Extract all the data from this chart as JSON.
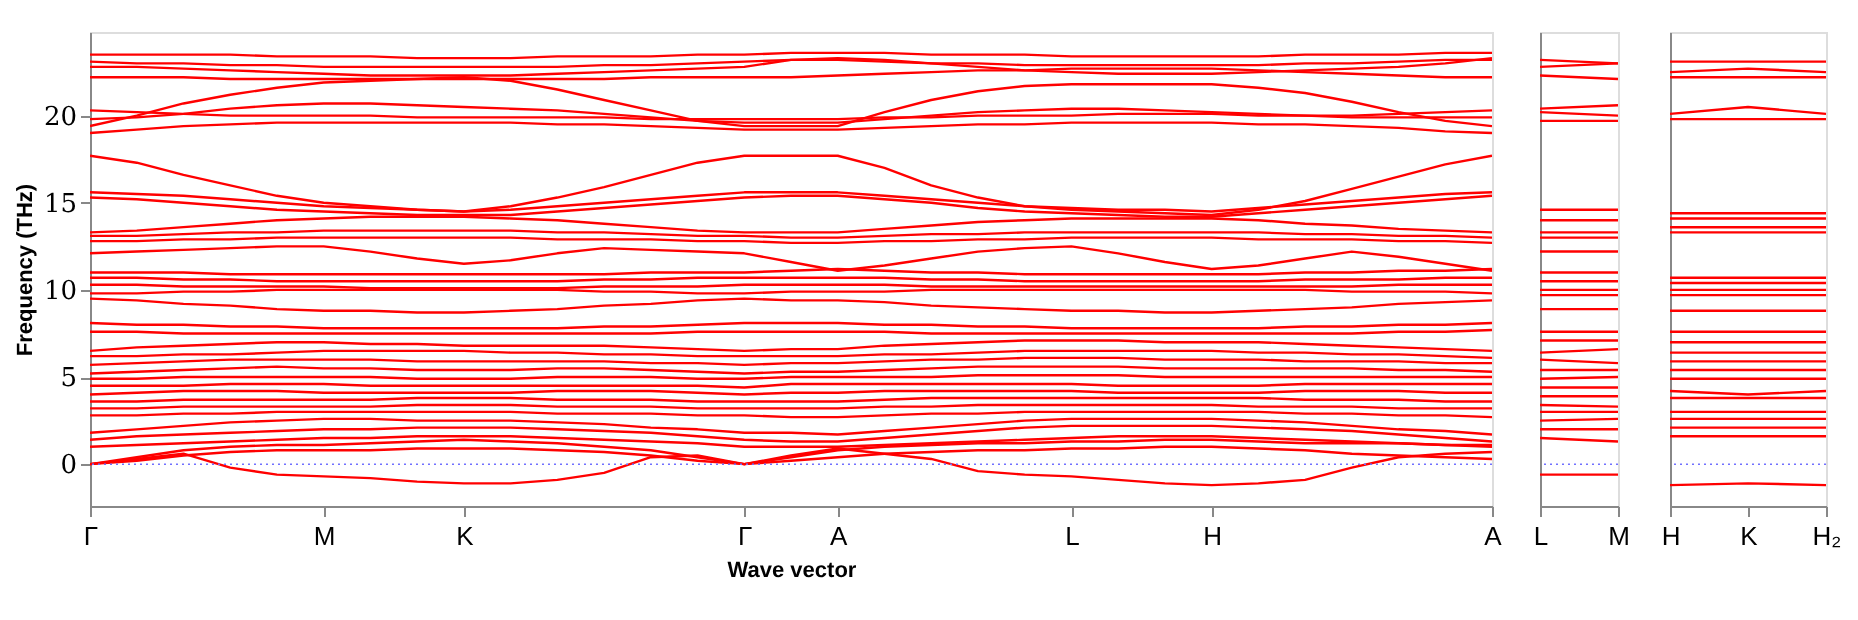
{
  "chart_data": [
    {
      "type": "line",
      "xlabel": "Wave vector",
      "ylabel": "Frequency (THz)",
      "ylim": [
        -2.4,
        24.8
      ],
      "yticks": [
        0,
        5,
        10,
        15,
        20
      ],
      "ref_lines": [
        {
          "axis": "y",
          "value": 0,
          "label": null,
          "color": "#7070ff",
          "line_style": "dotted"
        }
      ],
      "categories": [
        "Γ",
        null,
        null,
        null,
        null,
        "M",
        null,
        null,
        "K",
        null,
        null,
        null,
        null,
        null,
        "Γ",
        null,
        "A",
        null,
        null,
        null,
        null,
        "L",
        null,
        null,
        "H",
        null,
        null,
        null,
        null,
        null,
        "A"
      ],
      "series": [
        {
          "color": "#ff0000",
          "values": [
            23.5,
            23.5,
            23.5,
            23.5,
            23.4,
            23.4,
            23.4,
            23.3,
            23.3,
            23.3,
            23.4,
            23.4,
            23.4,
            23.5,
            23.5,
            23.6,
            23.6,
            23.6,
            23.5,
            23.5,
            23.5,
            23.4,
            23.4,
            23.4,
            23.4,
            23.4,
            23.5,
            23.5,
            23.5,
            23.6,
            23.6
          ]
        },
        {
          "color": "#ff0000",
          "values": [
            23.1,
            23.0,
            23.0,
            22.9,
            22.9,
            22.8,
            22.8,
            22.8,
            22.8,
            22.8,
            22.8,
            22.9,
            22.9,
            23.0,
            23.1,
            23.2,
            23.2,
            23.1,
            23.0,
            23.0,
            22.9,
            22.9,
            22.9,
            22.9,
            22.9,
            22.9,
            23.0,
            23.0,
            23.1,
            23.2,
            23.2
          ]
        },
        {
          "color": "#ff0000",
          "values": [
            22.8,
            22.8,
            22.7,
            22.6,
            22.5,
            22.4,
            22.3,
            22.3,
            22.3,
            22.3,
            22.4,
            22.5,
            22.6,
            22.7,
            22.8,
            23.2,
            23.3,
            23.2,
            23.0,
            22.8,
            22.6,
            22.5,
            22.4,
            22.4,
            22.4,
            22.5,
            22.6,
            22.7,
            22.8,
            23.0,
            23.3
          ]
        },
        {
          "color": "#ff0000",
          "values": [
            22.2,
            22.2,
            22.2,
            22.1,
            22.1,
            22.1,
            22.1,
            22.1,
            22.1,
            22.1,
            22.1,
            22.1,
            22.2,
            22.2,
            22.2,
            22.2,
            22.3,
            22.4,
            22.5,
            22.6,
            22.6,
            22.7,
            22.7,
            22.7,
            22.7,
            22.6,
            22.5,
            22.4,
            22.3,
            22.2,
            22.2
          ]
        },
        {
          "color": "#ff0000",
          "values": [
            19.4,
            20.0,
            20.7,
            21.2,
            21.6,
            21.9,
            22.0,
            22.1,
            22.2,
            22.0,
            21.5,
            20.9,
            20.3,
            19.7,
            19.4,
            19.4,
            19.4,
            20.2,
            20.9,
            21.4,
            21.7,
            21.8,
            21.8,
            21.8,
            21.8,
            21.6,
            21.3,
            20.8,
            20.2,
            19.7,
            19.4
          ]
        },
        {
          "color": "#ff0000",
          "values": [
            19.8,
            19.9,
            20.1,
            20.4,
            20.6,
            20.7,
            20.7,
            20.6,
            20.5,
            20.4,
            20.3,
            20.1,
            19.9,
            19.7,
            19.6,
            19.6,
            19.6,
            19.8,
            20.0,
            20.2,
            20.3,
            20.4,
            20.4,
            20.3,
            20.2,
            20.1,
            20.0,
            19.9,
            19.9,
            19.9,
            19.9
          ]
        },
        {
          "color": "#ff0000",
          "values": [
            20.3,
            20.2,
            20.1,
            20.0,
            20.0,
            20.0,
            20.0,
            19.9,
            19.9,
            19.9,
            19.9,
            19.9,
            19.8,
            19.8,
            19.8,
            19.8,
            19.8,
            19.9,
            19.9,
            20.0,
            20.0,
            20.0,
            20.1,
            20.1,
            20.1,
            20.0,
            20.0,
            20.0,
            20.1,
            20.2,
            20.3
          ]
        },
        {
          "color": "#ff0000",
          "values": [
            19.0,
            19.2,
            19.4,
            19.5,
            19.6,
            19.6,
            19.6,
            19.6,
            19.6,
            19.6,
            19.5,
            19.5,
            19.4,
            19.3,
            19.2,
            19.2,
            19.2,
            19.3,
            19.4,
            19.5,
            19.5,
            19.6,
            19.6,
            19.6,
            19.6,
            19.5,
            19.5,
            19.4,
            19.3,
            19.1,
            19.0
          ]
        },
        {
          "color": "#ff0000",
          "values": [
            17.7,
            17.3,
            16.6,
            16.0,
            15.4,
            15.0,
            14.8,
            14.6,
            14.5,
            14.8,
            15.3,
            15.9,
            16.6,
            17.3,
            17.7,
            17.7,
            17.7,
            17.0,
            16.0,
            15.3,
            14.8,
            14.6,
            14.5,
            14.4,
            14.3,
            14.6,
            15.1,
            15.8,
            16.5,
            17.2,
            17.7
          ]
        },
        {
          "color": "#ff0000",
          "values": [
            15.6,
            15.5,
            15.4,
            15.2,
            15.0,
            14.8,
            14.7,
            14.6,
            14.5,
            14.6,
            14.8,
            15.0,
            15.2,
            15.4,
            15.6,
            15.6,
            15.6,
            15.4,
            15.2,
            15.0,
            14.8,
            14.7,
            14.6,
            14.6,
            14.5,
            14.7,
            14.9,
            15.1,
            15.3,
            15.5,
            15.6
          ]
        },
        {
          "color": "#ff0000",
          "values": [
            15.3,
            15.2,
            15.0,
            14.8,
            14.6,
            14.5,
            14.4,
            14.3,
            14.3,
            14.3,
            14.5,
            14.7,
            14.9,
            15.1,
            15.3,
            15.4,
            15.4,
            15.2,
            15.0,
            14.7,
            14.5,
            14.4,
            14.3,
            14.2,
            14.2,
            14.4,
            14.6,
            14.8,
            15.0,
            15.2,
            15.4
          ]
        },
        {
          "color": "#ff0000",
          "values": [
            13.3,
            13.4,
            13.6,
            13.8,
            14.0,
            14.1,
            14.2,
            14.2,
            14.2,
            14.1,
            14.0,
            13.8,
            13.6,
            13.4,
            13.3,
            13.3,
            13.3,
            13.5,
            13.7,
            13.9,
            14.0,
            14.1,
            14.1,
            14.1,
            14.1,
            14.0,
            13.8,
            13.7,
            13.5,
            13.4,
            13.3
          ]
        },
        {
          "color": "#ff0000",
          "values": [
            13.1,
            13.1,
            13.2,
            13.3,
            13.3,
            13.4,
            13.4,
            13.4,
            13.4,
            13.4,
            13.3,
            13.3,
            13.2,
            13.1,
            13.1,
            13.0,
            13.0,
            13.1,
            13.2,
            13.2,
            13.3,
            13.3,
            13.3,
            13.3,
            13.3,
            13.3,
            13.2,
            13.2,
            13.1,
            13.1,
            13.0
          ]
        },
        {
          "color": "#ff0000",
          "values": [
            12.8,
            12.8,
            12.9,
            12.9,
            13.0,
            13.0,
            13.0,
            13.0,
            13.0,
            13.0,
            12.9,
            12.9,
            12.9,
            12.8,
            12.8,
            12.7,
            12.7,
            12.8,
            12.8,
            12.9,
            12.9,
            13.0,
            13.0,
            13.0,
            13.0,
            12.9,
            12.9,
            12.9,
            12.8,
            12.8,
            12.7
          ]
        },
        {
          "color": "#ff0000",
          "values": [
            12.1,
            12.2,
            12.3,
            12.4,
            12.5,
            12.5,
            12.2,
            11.8,
            11.5,
            11.7,
            12.1,
            12.4,
            12.3,
            12.2,
            12.1,
            11.6,
            11.1,
            11.4,
            11.8,
            12.2,
            12.4,
            12.5,
            12.1,
            11.6,
            11.2,
            11.4,
            11.8,
            12.2,
            11.9,
            11.5,
            11.1
          ]
        },
        {
          "color": "#ff0000",
          "values": [
            11.0,
            11.0,
            11.0,
            10.9,
            10.9,
            10.9,
            10.9,
            10.9,
            10.9,
            10.9,
            10.9,
            10.9,
            11.0,
            11.0,
            11.0,
            11.1,
            11.2,
            11.1,
            11.0,
            11.0,
            10.9,
            10.9,
            10.9,
            10.9,
            10.9,
            10.9,
            11.0,
            11.0,
            11.1,
            11.1,
            11.2
          ]
        },
        {
          "color": "#ff0000",
          "values": [
            10.7,
            10.7,
            10.6,
            10.6,
            10.5,
            10.5,
            10.5,
            10.5,
            10.5,
            10.5,
            10.5,
            10.6,
            10.6,
            10.7,
            10.7,
            10.7,
            10.7,
            10.7,
            10.6,
            10.6,
            10.5,
            10.5,
            10.5,
            10.5,
            10.5,
            10.5,
            10.6,
            10.6,
            10.6,
            10.7,
            10.7
          ]
        },
        {
          "color": "#ff0000",
          "values": [
            10.3,
            10.3,
            10.2,
            10.2,
            10.2,
            10.2,
            10.1,
            10.1,
            10.1,
            10.1,
            10.1,
            10.2,
            10.2,
            10.2,
            10.3,
            10.3,
            10.3,
            10.3,
            10.2,
            10.2,
            10.2,
            10.2,
            10.2,
            10.2,
            10.2,
            10.2,
            10.2,
            10.2,
            10.3,
            10.3,
            10.3
          ]
        },
        {
          "color": "#ff0000",
          "values": [
            9.8,
            9.8,
            9.9,
            9.9,
            10.0,
            10.0,
            10.0,
            10.0,
            10.0,
            10.0,
            10.0,
            9.9,
            9.9,
            9.8,
            9.8,
            9.9,
            9.9,
            9.9,
            10.0,
            10.0,
            10.0,
            10.0,
            10.0,
            10.0,
            10.0,
            10.0,
            10.0,
            9.9,
            9.9,
            9.9,
            9.8
          ]
        },
        {
          "color": "#ff0000",
          "values": [
            9.5,
            9.4,
            9.2,
            9.1,
            8.9,
            8.8,
            8.8,
            8.7,
            8.7,
            8.8,
            8.9,
            9.1,
            9.2,
            9.4,
            9.5,
            9.4,
            9.4,
            9.3,
            9.1,
            9.0,
            8.9,
            8.8,
            8.8,
            8.7,
            8.7,
            8.8,
            8.9,
            9.0,
            9.2,
            9.3,
            9.4
          ]
        },
        {
          "color": "#ff0000",
          "values": [
            8.1,
            8.0,
            8.0,
            7.9,
            7.9,
            7.8,
            7.8,
            7.8,
            7.8,
            7.8,
            7.8,
            7.9,
            7.9,
            8.0,
            8.1,
            8.1,
            8.1,
            8.0,
            8.0,
            7.9,
            7.9,
            7.8,
            7.8,
            7.8,
            7.8,
            7.8,
            7.9,
            7.9,
            8.0,
            8.0,
            8.1
          ]
        },
        {
          "color": "#ff0000",
          "values": [
            7.6,
            7.6,
            7.5,
            7.5,
            7.5,
            7.5,
            7.5,
            7.5,
            7.5,
            7.5,
            7.5,
            7.5,
            7.5,
            7.6,
            7.6,
            7.6,
            7.6,
            7.6,
            7.5,
            7.5,
            7.5,
            7.5,
            7.5,
            7.5,
            7.5,
            7.5,
            7.5,
            7.5,
            7.6,
            7.6,
            7.7
          ]
        },
        {
          "color": "#ff0000",
          "values": [
            6.5,
            6.7,
            6.8,
            6.9,
            7.0,
            7.0,
            6.9,
            6.9,
            6.8,
            6.8,
            6.8,
            6.8,
            6.7,
            6.6,
            6.5,
            6.6,
            6.6,
            6.8,
            6.9,
            7.0,
            7.1,
            7.1,
            7.1,
            7.0,
            7.0,
            7.0,
            6.9,
            6.8,
            6.7,
            6.6,
            6.5
          ]
        },
        {
          "color": "#ff0000",
          "values": [
            6.2,
            6.2,
            6.3,
            6.3,
            6.4,
            6.5,
            6.5,
            6.5,
            6.5,
            6.4,
            6.4,
            6.3,
            6.3,
            6.2,
            6.2,
            6.2,
            6.2,
            6.3,
            6.3,
            6.4,
            6.5,
            6.5,
            6.5,
            6.5,
            6.5,
            6.4,
            6.4,
            6.3,
            6.3,
            6.2,
            6.1
          ]
        },
        {
          "color": "#ff0000",
          "values": [
            5.7,
            5.8,
            5.9,
            6.0,
            6.0,
            6.0,
            6.0,
            5.9,
            5.9,
            5.9,
            5.9,
            5.9,
            5.8,
            5.8,
            5.7,
            5.8,
            5.8,
            5.9,
            6.0,
            6.0,
            6.1,
            6.1,
            6.1,
            6.0,
            6.0,
            6.0,
            5.9,
            5.9,
            5.9,
            5.8,
            5.8
          ]
        },
        {
          "color": "#ff0000",
          "values": [
            5.2,
            5.3,
            5.4,
            5.5,
            5.6,
            5.5,
            5.5,
            5.4,
            5.4,
            5.4,
            5.5,
            5.5,
            5.4,
            5.3,
            5.2,
            5.3,
            5.3,
            5.4,
            5.5,
            5.6,
            5.6,
            5.6,
            5.6,
            5.5,
            5.5,
            5.5,
            5.5,
            5.5,
            5.4,
            5.4,
            5.3
          ]
        },
        {
          "color": "#ff0000",
          "values": [
            4.9,
            4.9,
            5.0,
            5.0,
            5.0,
            5.0,
            5.0,
            4.9,
            4.9,
            4.9,
            5.0,
            5.0,
            5.0,
            4.9,
            4.9,
            5.0,
            5.0,
            5.0,
            5.0,
            5.1,
            5.1,
            5.1,
            5.1,
            5.0,
            5.0,
            5.0,
            5.0,
            5.0,
            5.0,
            5.0,
            5.0
          ]
        },
        {
          "color": "#ff0000",
          "values": [
            4.5,
            4.5,
            4.5,
            4.6,
            4.6,
            4.6,
            4.5,
            4.5,
            4.5,
            4.5,
            4.5,
            4.5,
            4.5,
            4.5,
            4.4,
            4.6,
            4.6,
            4.6,
            4.6,
            4.6,
            4.6,
            4.6,
            4.5,
            4.5,
            4.5,
            4.5,
            4.6,
            4.6,
            4.6,
            4.6,
            4.6
          ]
        },
        {
          "color": "#ff0000",
          "values": [
            4.0,
            4.1,
            4.2,
            4.2,
            4.2,
            4.1,
            4.1,
            4.1,
            4.1,
            4.1,
            4.2,
            4.2,
            4.2,
            4.1,
            4.0,
            4.1,
            4.1,
            4.2,
            4.2,
            4.2,
            4.2,
            4.2,
            4.1,
            4.1,
            4.1,
            4.1,
            4.2,
            4.2,
            4.2,
            4.1,
            4.1
          ]
        },
        {
          "color": "#ff0000",
          "values": [
            3.6,
            3.6,
            3.7,
            3.7,
            3.7,
            3.7,
            3.7,
            3.8,
            3.8,
            3.8,
            3.7,
            3.7,
            3.7,
            3.6,
            3.6,
            3.6,
            3.6,
            3.7,
            3.8,
            3.8,
            3.8,
            3.8,
            3.8,
            3.8,
            3.8,
            3.8,
            3.7,
            3.7,
            3.7,
            3.6,
            3.6
          ]
        },
        {
          "color": "#ff0000",
          "values": [
            3.2,
            3.2,
            3.3,
            3.3,
            3.3,
            3.3,
            3.3,
            3.4,
            3.4,
            3.4,
            3.3,
            3.3,
            3.3,
            3.2,
            3.2,
            3.2,
            3.2,
            3.3,
            3.3,
            3.4,
            3.4,
            3.4,
            3.4,
            3.4,
            3.4,
            3.3,
            3.3,
            3.3,
            3.2,
            3.2,
            3.2
          ]
        },
        {
          "color": "#ff0000",
          "values": [
            2.8,
            2.8,
            2.9,
            2.9,
            3.0,
            3.0,
            3.0,
            3.0,
            3.0,
            3.0,
            2.9,
            2.9,
            2.9,
            2.8,
            2.8,
            2.7,
            2.7,
            2.8,
            2.9,
            2.9,
            3.0,
            3.0,
            3.0,
            3.0,
            3.0,
            3.0,
            2.9,
            2.9,
            2.8,
            2.8,
            2.7
          ]
        },
        {
          "color": "#ff0000",
          "values": [
            1.8,
            2.0,
            2.2,
            2.4,
            2.5,
            2.6,
            2.6,
            2.5,
            2.5,
            2.5,
            2.4,
            2.3,
            2.1,
            2.0,
            1.8,
            1.8,
            1.7,
            1.9,
            2.1,
            2.3,
            2.5,
            2.6,
            2.6,
            2.6,
            2.6,
            2.5,
            2.4,
            2.2,
            2.0,
            1.9,
            1.7
          ]
        },
        {
          "color": "#ff0000",
          "values": [
            1.4,
            1.6,
            1.7,
            1.8,
            1.9,
            2.0,
            2.0,
            2.1,
            2.1,
            2.1,
            2.0,
            1.9,
            1.8,
            1.6,
            1.4,
            1.3,
            1.3,
            1.5,
            1.7,
            1.9,
            2.1,
            2.2,
            2.2,
            2.2,
            2.2,
            2.1,
            2.0,
            1.9,
            1.7,
            1.5,
            1.3
          ]
        },
        {
          "color": "#ff0000",
          "values": [
            1.0,
            1.1,
            1.2,
            1.3,
            1.4,
            1.5,
            1.5,
            1.6,
            1.6,
            1.6,
            1.5,
            1.4,
            1.3,
            1.2,
            1.0,
            1.0,
            1.0,
            1.1,
            1.2,
            1.3,
            1.4,
            1.5,
            1.6,
            1.6,
            1.6,
            1.5,
            1.4,
            1.3,
            1.2,
            1.1,
            1.0
          ]
        },
        {
          "color": "#ff0000",
          "values": [
            0.0,
            0.4,
            0.8,
            1.0,
            1.1,
            1.1,
            1.2,
            1.3,
            1.4,
            1.3,
            1.2,
            1.0,
            0.8,
            0.4,
            0.0,
            0.4,
            0.8,
            1.0,
            1.1,
            1.2,
            1.2,
            1.3,
            1.3,
            1.4,
            1.4,
            1.3,
            1.2,
            1.2,
            1.2,
            1.1,
            1.1
          ]
        },
        {
          "color": "#ff0000",
          "values": [
            0.0,
            0.2,
            0.5,
            0.7,
            0.8,
            0.8,
            0.8,
            0.9,
            0.9,
            0.9,
            0.8,
            0.7,
            0.5,
            0.2,
            0.0,
            0.2,
            0.4,
            0.6,
            0.7,
            0.8,
            0.8,
            0.9,
            0.9,
            1.0,
            1.0,
            0.9,
            0.8,
            0.6,
            0.5,
            0.4,
            0.3
          ]
        },
        {
          "color": "#ff0000",
          "values": [
            0.0,
            0.3,
            0.6,
            -0.2,
            -0.6,
            -0.7,
            -0.8,
            -1.0,
            -1.1,
            -1.1,
            -0.9,
            -0.5,
            0.4,
            0.5,
            0.0,
            0.5,
            0.9,
            0.6,
            0.3,
            -0.4,
            -0.6,
            -0.7,
            -0.9,
            -1.1,
            -1.2,
            -1.1,
            -0.9,
            -0.2,
            0.4,
            0.6,
            0.7
          ]
        }
      ]
    },
    {
      "type": "line",
      "tick_labels": "x",
      "ylim": [
        -2.4,
        24.8
      ],
      "yticks": [
        0,
        5,
        10,
        15,
        20
      ],
      "ref_lines": [
        {
          "axis": "y",
          "value": 0,
          "label": null,
          "color": "#7070ff",
          "line_style": "dotted"
        }
      ],
      "categories": [
        "L",
        "M"
      ],
      "series": [
        {
          "color": "#ff0000",
          "values": [
            23.2,
            23.0
          ]
        },
        {
          "color": "#ff0000",
          "values": [
            22.8,
            23.0
          ]
        },
        {
          "color": "#ff0000",
          "values": [
            22.3,
            22.1
          ]
        },
        {
          "color": "#ff0000",
          "values": [
            20.4,
            20.6
          ]
        },
        {
          "color": "#ff0000",
          "values": [
            20.2,
            20.0
          ]
        },
        {
          "color": "#ff0000",
          "values": [
            19.7,
            19.7
          ]
        },
        {
          "color": "#ff0000",
          "values": [
            14.6,
            14.6
          ]
        },
        {
          "color": "#ff0000",
          "values": [
            14.0,
            14.0
          ]
        },
        {
          "color": "#ff0000",
          "values": [
            13.3,
            13.3
          ]
        },
        {
          "color": "#ff0000",
          "values": [
            13.0,
            13.0
          ]
        },
        {
          "color": "#ff0000",
          "values": [
            12.2,
            12.2
          ]
        },
        {
          "color": "#ff0000",
          "values": [
            11.0,
            11.0
          ]
        },
        {
          "color": "#ff0000",
          "values": [
            10.5,
            10.5
          ]
        },
        {
          "color": "#ff0000",
          "values": [
            10.0,
            10.0
          ]
        },
        {
          "color": "#ff0000",
          "values": [
            9.7,
            9.7
          ]
        },
        {
          "color": "#ff0000",
          "values": [
            8.9,
            8.9
          ]
        },
        {
          "color": "#ff0000",
          "values": [
            7.6,
            7.6
          ]
        },
        {
          "color": "#ff0000",
          "values": [
            7.1,
            7.1
          ]
        },
        {
          "color": "#ff0000",
          "values": [
            6.4,
            6.6
          ]
        },
        {
          "color": "#ff0000",
          "values": [
            6.0,
            5.8
          ]
        },
        {
          "color": "#ff0000",
          "values": [
            5.4,
            5.4
          ]
        },
        {
          "color": "#ff0000",
          "values": [
            4.9,
            5.0
          ]
        },
        {
          "color": "#ff0000",
          "values": [
            4.4,
            4.4
          ]
        },
        {
          "color": "#ff0000",
          "values": [
            3.9,
            3.9
          ]
        },
        {
          "color": "#ff0000",
          "values": [
            3.4,
            3.3
          ]
        },
        {
          "color": "#ff0000",
          "values": [
            3.0,
            3.0
          ]
        },
        {
          "color": "#ff0000",
          "values": [
            2.5,
            2.6
          ]
        },
        {
          "color": "#ff0000",
          "values": [
            2.0,
            2.0
          ]
        },
        {
          "color": "#ff0000",
          "values": [
            1.5,
            1.3
          ]
        },
        {
          "color": "#ff0000",
          "values": [
            -0.6,
            -0.6
          ]
        }
      ]
    },
    {
      "type": "line",
      "tick_labels": "x",
      "ylim": [
        -2.4,
        24.8
      ],
      "yticks": [
        0,
        5,
        10,
        15,
        20
      ],
      "ref_lines": [
        {
          "axis": "y",
          "value": 0,
          "label": null,
          "color": "#7070ff",
          "line_style": "dotted"
        }
      ],
      "categories": [
        "H",
        "K",
        "H₂"
      ],
      "series": [
        {
          "color": "#ff0000",
          "values": [
            23.1,
            23.1,
            23.1
          ]
        },
        {
          "color": "#ff0000",
          "values": [
            22.5,
            22.7,
            22.5
          ]
        },
        {
          "color": "#ff0000",
          "values": [
            22.2,
            22.2,
            22.2
          ]
        },
        {
          "color": "#ff0000",
          "values": [
            20.1,
            20.5,
            20.1
          ]
        },
        {
          "color": "#ff0000",
          "values": [
            19.8,
            19.8,
            19.8
          ]
        },
        {
          "color": "#ff0000",
          "values": [
            14.4,
            14.4,
            14.4
          ]
        },
        {
          "color": "#ff0000",
          "values": [
            14.1,
            14.1,
            14.1
          ]
        },
        {
          "color": "#ff0000",
          "values": [
            13.6,
            13.6,
            13.6
          ]
        },
        {
          "color": "#ff0000",
          "values": [
            13.3,
            13.3,
            13.3
          ]
        },
        {
          "color": "#ff0000",
          "values": [
            10.7,
            10.7,
            10.7
          ]
        },
        {
          "color": "#ff0000",
          "values": [
            10.4,
            10.4,
            10.4
          ]
        },
        {
          "color": "#ff0000",
          "values": [
            10.0,
            10.0,
            10.0
          ]
        },
        {
          "color": "#ff0000",
          "values": [
            9.7,
            9.7,
            9.7
          ]
        },
        {
          "color": "#ff0000",
          "values": [
            8.8,
            8.8,
            8.8
          ]
        },
        {
          "color": "#ff0000",
          "values": [
            7.6,
            7.6,
            7.6
          ]
        },
        {
          "color": "#ff0000",
          "values": [
            7.0,
            7.0,
            7.0
          ]
        },
        {
          "color": "#ff0000",
          "values": [
            6.4,
            6.4,
            6.4
          ]
        },
        {
          "color": "#ff0000",
          "values": [
            5.9,
            5.9,
            5.9
          ]
        },
        {
          "color": "#ff0000",
          "values": [
            5.4,
            5.4,
            5.4
          ]
        },
        {
          "color": "#ff0000",
          "values": [
            4.9,
            4.9,
            4.9
          ]
        },
        {
          "color": "#ff0000",
          "values": [
            4.2,
            4.0,
            4.2
          ]
        },
        {
          "color": "#ff0000",
          "values": [
            3.8,
            3.8,
            3.8
          ]
        },
        {
          "color": "#ff0000",
          "values": [
            3.0,
            3.0,
            3.0
          ]
        },
        {
          "color": "#ff0000",
          "values": [
            2.6,
            2.6,
            2.6
          ]
        },
        {
          "color": "#ff0000",
          "values": [
            2.1,
            2.1,
            2.1
          ]
        },
        {
          "color": "#ff0000",
          "values": [
            1.6,
            1.6,
            1.6
          ]
        },
        {
          "color": "#ff0000",
          "values": [
            -1.2,
            -1.1,
            -1.2
          ]
        }
      ]
    }
  ]
}
